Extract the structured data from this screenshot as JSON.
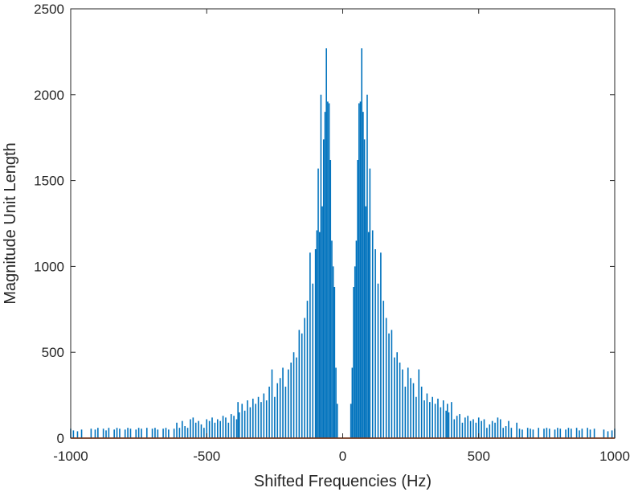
{
  "chart_data": {
    "type": "line",
    "title": "",
    "xlabel": "Shifted Frequencies (Hz)",
    "ylabel": "Magnitude Unit Length",
    "xlim": [
      -1000,
      1000
    ],
    "ylim": [
      0,
      2500
    ],
    "xticks": [
      -1000,
      -500,
      0,
      500,
      1000
    ],
    "yticks": [
      0,
      500,
      1000,
      1500,
      2000,
      2500
    ],
    "xtick_labels": [
      "-1000",
      "-500",
      "0",
      "500",
      "1000"
    ],
    "ytick_labels": [
      "0",
      "500",
      "1000",
      "1500",
      "2000",
      "2500"
    ],
    "grid": false,
    "legend": "none",
    "series": [
      {
        "color": "#0072BD",
        "note_style": "impulse",
        "x": [
          -1000,
          -990,
          -975,
          -960,
          -925,
          -910,
          -900,
          -880,
          -870,
          -860,
          -840,
          -830,
          -820,
          -800,
          -790,
          -780,
          -760,
          -750,
          -740,
          -720,
          -700,
          -690,
          -680,
          -660,
          -650,
          -640,
          -620,
          -610,
          -600,
          -590,
          -580,
          -570,
          -560,
          -550,
          -540,
          -530,
          -520,
          -510,
          -500,
          -490,
          -480,
          -470,
          -460,
          -450,
          -440,
          -430,
          -420,
          -410,
          -400,
          -390,
          -385,
          -380,
          -370,
          -360,
          -350,
          -340,
          -330,
          -320,
          -310,
          -300,
          -290,
          -280,
          -270,
          -260,
          -250,
          -240,
          -230,
          -220,
          -210,
          -200,
          -190,
          -180,
          -170,
          -160,
          -150,
          -140,
          -130,
          -120,
          -110,
          -100,
          -95,
          -90,
          -85,
          -80,
          -75,
          -70,
          -65,
          -60,
          -55,
          -50,
          -45,
          -40,
          -35,
          -30,
          -25,
          -20,
          30,
          35,
          40,
          45,
          50,
          55,
          60,
          65,
          70,
          75,
          80,
          85,
          90,
          95,
          100,
          110,
          120,
          130,
          140,
          150,
          160,
          170,
          180,
          190,
          200,
          210,
          220,
          230,
          240,
          250,
          260,
          270,
          280,
          290,
          300,
          310,
          320,
          330,
          340,
          350,
          360,
          370,
          380,
          385,
          390,
          400,
          410,
          420,
          430,
          440,
          450,
          460,
          470,
          480,
          490,
          500,
          510,
          520,
          530,
          540,
          550,
          560,
          570,
          580,
          590,
          600,
          610,
          620,
          640,
          650,
          660,
          680,
          690,
          700,
          720,
          740,
          750,
          760,
          780,
          790,
          800,
          820,
          830,
          840,
          860,
          870,
          880,
          900,
          910,
          925,
          960,
          975,
          990,
          1000
        ],
        "y": [
          55,
          45,
          40,
          50,
          55,
          50,
          60,
          55,
          45,
          60,
          50,
          60,
          55,
          50,
          60,
          55,
          50,
          60,
          55,
          60,
          55,
          60,
          50,
          55,
          60,
          50,
          55,
          90,
          60,
          100,
          70,
          60,
          110,
          120,
          90,
          100,
          80,
          60,
          110,
          100,
          120,
          90,
          110,
          100,
          130,
          120,
          90,
          140,
          130,
          110,
          210,
          150,
          200,
          160,
          220,
          180,
          230,
          200,
          240,
          210,
          260,
          220,
          300,
          400,
          240,
          320,
          350,
          410,
          300,
          400,
          440,
          500,
          470,
          630,
          610,
          700,
          800,
          1080,
          900,
          1100,
          1210,
          1570,
          1200,
          2000,
          1350,
          1740,
          1900,
          2270,
          1960,
          1950,
          1620,
          1150,
          1000,
          880,
          410,
          200,
          200,
          410,
          880,
          1000,
          1150,
          1620,
          1950,
          1960,
          2270,
          1900,
          1740,
          1350,
          2000,
          1200,
          1570,
          1210,
          1100,
          900,
          1080,
          800,
          700,
          610,
          630,
          470,
          500,
          440,
          400,
          300,
          410,
          350,
          320,
          240,
          400,
          300,
          220,
          260,
          210,
          240,
          200,
          230,
          180,
          220,
          160,
          200,
          150,
          210,
          110,
          130,
          140,
          90,
          120,
          130,
          100,
          110,
          90,
          120,
          100,
          110,
          60,
          80,
          100,
          90,
          120,
          110,
          60,
          70,
          100,
          60,
          90,
          55,
          50,
          60,
          55,
          50,
          60,
          55,
          60,
          55,
          50,
          60,
          55,
          50,
          60,
          55,
          60,
          45,
          55,
          60,
          50,
          55,
          50,
          40,
          45,
          55
        ]
      },
      {
        "color": "#D95319",
        "x": [
          -1000,
          1000
        ],
        "y": [
          0,
          0
        ]
      }
    ]
  }
}
